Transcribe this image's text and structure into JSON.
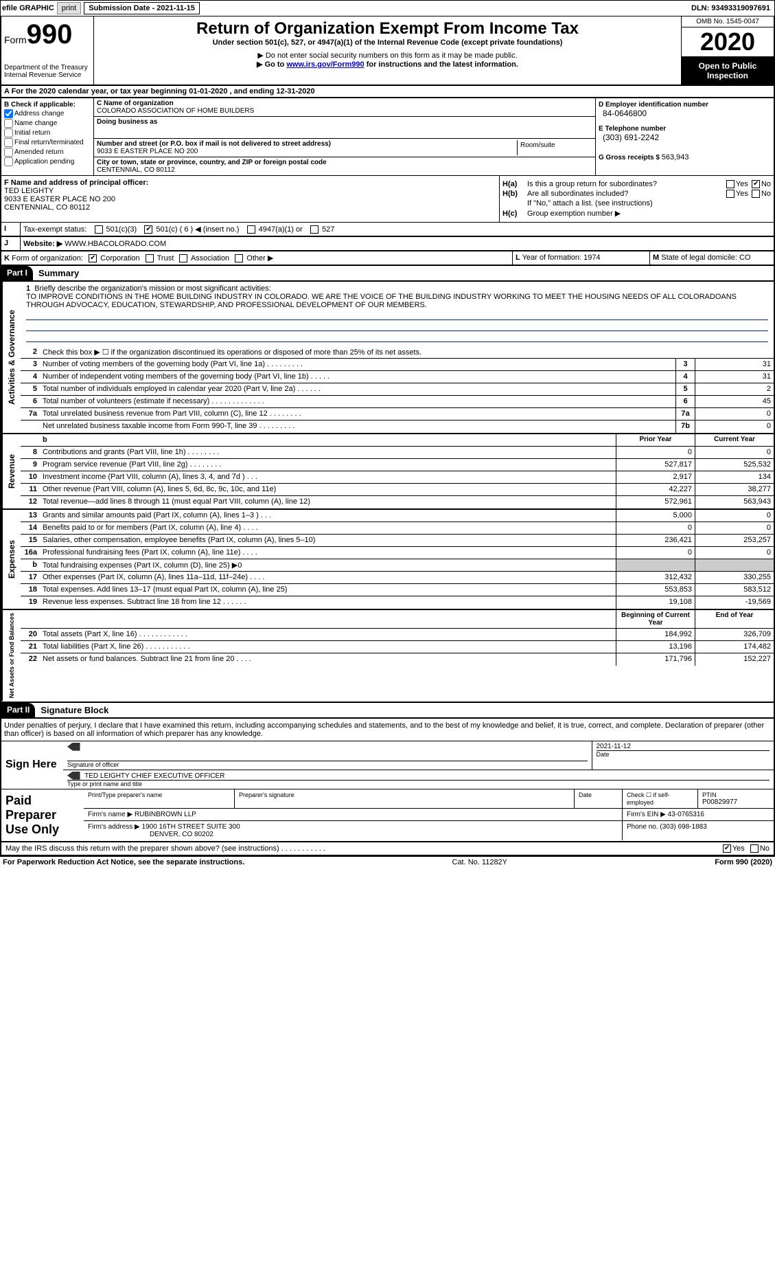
{
  "topbar": {
    "efile_label": "efile GRAPHIC",
    "print_btn": "print",
    "sub_date_label": "Submission Date - ",
    "sub_date": "2021-11-15",
    "dln_label": "DLN: ",
    "dln": "93493319097691"
  },
  "header": {
    "form_word": "Form",
    "form_num": "990",
    "dept": "Department of the Treasury",
    "irs": "Internal Revenue Service",
    "title": "Return of Organization Exempt From Income Tax",
    "subtitle": "Under section 501(c), 527, or 4947(a)(1) of the Internal Revenue Code (except private foundations)",
    "note1": "▶ Do not enter social security numbers on this form as it may be made public.",
    "note2_pre": "▶ Go to ",
    "note2_link": "www.irs.gov/Form990",
    "note2_post": " for instructions and the latest information.",
    "omb": "OMB No. 1545-0047",
    "year": "2020",
    "open_pub": "Open to Public Inspection"
  },
  "row_a": "A For the 2020 calendar year, or tax year beginning 01-01-2020    , and ending 12-31-2020",
  "section_b": {
    "label": "B Check if applicable:",
    "items": [
      {
        "label": "Address change",
        "checked": true
      },
      {
        "label": "Name change",
        "checked": false
      },
      {
        "label": "Initial return",
        "checked": false
      },
      {
        "label": "Final return/terminated",
        "checked": false
      },
      {
        "label": "Amended return",
        "checked": false
      },
      {
        "label": "Application pending",
        "checked": false
      }
    ]
  },
  "section_c": {
    "name_label": "C Name of organization",
    "name": "COLORADO ASSOCIATION OF HOME BUILDERS",
    "dba_label": "Doing business as",
    "dba": "",
    "addr_label": "Number and street (or P.O. box if mail is not delivered to street address)",
    "room_label": "Room/suite",
    "addr": "9033 E EASTER PLACE NO 200",
    "city_label": "City or town, state or province, country, and ZIP or foreign postal code",
    "city": "CENTENNIAL, CO  80112"
  },
  "section_d": {
    "ein_label": "D Employer identification number",
    "ein": "84-0646800",
    "tel_label": "E Telephone number",
    "tel": "(303) 691-2242",
    "gross_label": "G Gross receipts $ ",
    "gross": "563,943"
  },
  "section_f": {
    "label": "F Name and address of principal officer:",
    "name": "TED LEIGHTY",
    "addr1": "9033 E EASTER PLACE NO 200",
    "addr2": "CENTENNIAL, CO  80112"
  },
  "section_h": {
    "ha_label": "H(a)",
    "ha_text": "Is this a group return for subordinates?",
    "ha_yes": false,
    "ha_no": true,
    "hb_label": "H(b)",
    "hb_text": "Are all subordinates included?",
    "hb_note": "If \"No,\" attach a list. (see instructions)",
    "hc_label": "H(c)",
    "hc_text": "Group exemption number ▶"
  },
  "row_i": {
    "label": "I",
    "text": "Tax-exempt status:",
    "opts": {
      "501c3": false,
      "501c_other": true,
      "501c_num": "6",
      "insert": "◀ (insert no.)",
      "4947": false,
      "527": false
    }
  },
  "row_j": {
    "label": "J",
    "text": "Website: ▶",
    "val": "WWW.HBACOLORADO.COM"
  },
  "row_k": {
    "label": "K",
    "text": "Form of organization:",
    "corp": true,
    "trust": false,
    "assoc": false,
    "other": false,
    "corp_l": "Corporation",
    "trust_l": "Trust",
    "assoc_l": "Association",
    "other_l": "Other ▶"
  },
  "row_l": {
    "label": "L",
    "text": "Year of formation: ",
    "val": "1974",
    "m_label": "M",
    "m_text": "State of legal domicile: ",
    "m_val": "CO"
  },
  "part1": {
    "hdr": "Part I",
    "title": "Summary",
    "mission_label": "1  Briefly describe the organization's mission or most significant activities:",
    "mission": "TO IMPROVE CONDITIONS IN THE HOME BUILDING INDUSTRY IN COLORADO. WE ARE THE VOICE OF THE BUILDING INDUSTRY WORKING TO MEET THE HOUSING NEEDS OF ALL COLORADOANS THROUGH ADVOCACY, EDUCATION, STEWARDSHIP, AND PROFESSIONAL DEVELOPMENT OF OUR MEMBERS.",
    "line2": "Check this box ▶ ☐ if the organization discontinued its operations or disposed of more than 25% of its net assets.",
    "gov_lines": [
      {
        "n": "3",
        "d": "Number of voting members of the governing body (Part VI, line 1a)   .    .    .    .    .    .    .    .    .",
        "b": "3",
        "v": "31"
      },
      {
        "n": "4",
        "d": "Number of independent voting members of the governing body (Part VI, line 1b)   .    .    .    .    .",
        "b": "4",
        "v": "31"
      },
      {
        "n": "5",
        "d": "Total number of individuals employed in calendar year 2020 (Part V, line 2a)   .    .    .    .    .    .",
        "b": "5",
        "v": "2"
      },
      {
        "n": "6",
        "d": "Total number of volunteers (estimate if necessary)   .    .    .    .    .    .    .    .    .    .    .    .    .",
        "b": "6",
        "v": "45"
      },
      {
        "n": "7a",
        "d": "Total unrelated business revenue from Part VIII, column (C), line 12   .    .    .    .    .    .    .    .",
        "b": "7a",
        "v": "0"
      },
      {
        "n": "",
        "d": "Net unrelated business taxable income from Form 990-T, line 39   .    .    .    .    .    .    .    .    .",
        "b": "7b",
        "v": "0"
      }
    ],
    "col_hdr_prior": "Prior Year",
    "col_hdr_curr": "Current Year",
    "rev_lines": [
      {
        "n": "8",
        "d": "Contributions and grants (Part VIII, line 1h)   .    .    .    .    .    .    .    .",
        "p": "0",
        "c": "0"
      },
      {
        "n": "9",
        "d": "Program service revenue (Part VIII, line 2g)   .    .    .    .    .    .    .    .",
        "p": "527,817",
        "c": "525,532"
      },
      {
        "n": "10",
        "d": "Investment income (Part VIII, column (A), lines 3, 4, and 7d )   .    .    .",
        "p": "2,917",
        "c": "134"
      },
      {
        "n": "11",
        "d": "Other revenue (Part VIII, column (A), lines 5, 6d, 8c, 9c, 10c, and 11e)",
        "p": "42,227",
        "c": "38,277"
      },
      {
        "n": "12",
        "d": "Total revenue—add lines 8 through 11 (must equal Part VIII, column (A), line 12)",
        "p": "572,961",
        "c": "563,943"
      }
    ],
    "exp_lines": [
      {
        "n": "13",
        "d": "Grants and similar amounts paid (Part IX, column (A), lines 1–3 )   .    .    .",
        "p": "5,000",
        "c": "0"
      },
      {
        "n": "14",
        "d": "Benefits paid to or for members (Part IX, column (A), line 4)   .    .    .    .",
        "p": "0",
        "c": "0"
      },
      {
        "n": "15",
        "d": "Salaries, other compensation, employee benefits (Part IX, column (A), lines 5–10)",
        "p": "236,421",
        "c": "253,257"
      },
      {
        "n": "16a",
        "d": "Professional fundraising fees (Part IX, column (A), line 11e)   .    .    .    .",
        "p": "0",
        "c": "0"
      },
      {
        "n": "b",
        "d": "Total fundraising expenses (Part IX, column (D), line 25) ▶0",
        "p": "",
        "c": ""
      },
      {
        "n": "17",
        "d": "Other expenses (Part IX, column (A), lines 11a–11d, 11f–24e)   .    .    .    .",
        "p": "312,432",
        "c": "330,255"
      },
      {
        "n": "18",
        "d": "Total expenses. Add lines 13–17 (must equal Part IX, column (A), line 25)",
        "p": "553,853",
        "c": "583,512"
      },
      {
        "n": "19",
        "d": "Revenue less expenses. Subtract line 18 from line 12   .    .    .    .    .    .",
        "p": "19,108",
        "c": "-19,569"
      }
    ],
    "net_hdr_b": "Beginning of Current Year",
    "net_hdr_e": "End of Year",
    "net_lines": [
      {
        "n": "20",
        "d": "Total assets (Part X, line 16)   .    .    .    .    .    .    .    .    .    .    .    .",
        "p": "184,992",
        "c": "326,709"
      },
      {
        "n": "21",
        "d": "Total liabilities (Part X, line 26)   .    .    .    .    .    .    .    .    .    .    .",
        "p": "13,196",
        "c": "174,482"
      },
      {
        "n": "22",
        "d": "Net assets or fund balances. Subtract line 21 from line 20   .    .    .    .",
        "p": "171,796",
        "c": "152,227"
      }
    ],
    "side_gov": "Activities & Governance",
    "side_rev": "Revenue",
    "side_exp": "Expenses",
    "side_net": "Net Assets or Fund Balances"
  },
  "part2": {
    "hdr": "Part II",
    "title": "Signature Block",
    "decl": "Under penalties of perjury, I declare that I have examined this return, including accompanying schedules and statements, and to the best of my knowledge and belief, it is true, correct, and complete. Declaration of preparer (other than officer) is based on all information of which preparer has any knowledge.",
    "sign_here": "Sign Here",
    "sig_officer": "Signature of officer",
    "date_label": "Date",
    "sig_date": "2021-11-12",
    "name_title": "TED LEIGHTY CHIEF EXECUTIVE OFFICER",
    "type_label": "Type or print name and title",
    "paid": "Paid Preparer Use Only",
    "prep_name_l": "Print/Type preparer's name",
    "prep_name": "",
    "prep_sig_l": "Preparer's signature",
    "prep_date_l": "Date",
    "check_self": "Check ☐ if self-employed",
    "ptin_l": "PTIN",
    "ptin": "P00829977",
    "firm_name_l": "Firm's name    ▶",
    "firm_name": "RUBINBROWN LLP",
    "firm_ein_l": "Firm's EIN ▶",
    "firm_ein": "43-0765316",
    "firm_addr_l": "Firm's address ▶",
    "firm_addr1": "1900 16TH STREET SUITE 300",
    "firm_addr2": "DENVER, CO  80202",
    "phone_l": "Phone no. ",
    "phone": "(303) 698-1883",
    "discuss": "May the IRS discuss this return with the preparer shown above? (see instructions)   .    .    .    .    .    .    .    .    .    .    .",
    "discuss_yes": true
  },
  "footer": {
    "left": "For Paperwork Reduction Act Notice, see the separate instructions.",
    "mid": "Cat. No. 11282Y",
    "right": "Form 990 (2020)"
  },
  "labels": {
    "yes": "Yes",
    "no": "No"
  }
}
